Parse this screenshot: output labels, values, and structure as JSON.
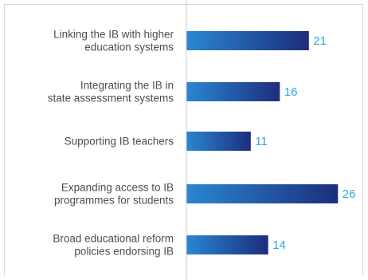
{
  "chart_data": {
    "type": "bar",
    "orientation": "horizontal",
    "categories": [
      [
        "Linking the IB with higher",
        "education systems"
      ],
      [
        "Integrating the IB in",
        "state assessment systems"
      ],
      [
        "Supporting IB teachers"
      ],
      [
        "Expanding access to IB",
        "programmes for students"
      ],
      [
        "Broad educational reform",
        "policies endorsing IB"
      ]
    ],
    "values": [
      21,
      16,
      11,
      26,
      14
    ],
    "data_labels": [
      "21",
      "16",
      "11",
      "26",
      "14"
    ],
    "title": "",
    "xlabel": "",
    "ylabel": "",
    "xlim": [
      0,
      30
    ],
    "grid": false,
    "legend": "none",
    "colors": {
      "bar_start": "#2a86d1",
      "bar_end": "#1c2e7c",
      "value_label": "#2aa7df",
      "category_label": "#4d4d4d",
      "axis_line": "#c8c8c8",
      "frame": "#d7d7d7"
    }
  }
}
